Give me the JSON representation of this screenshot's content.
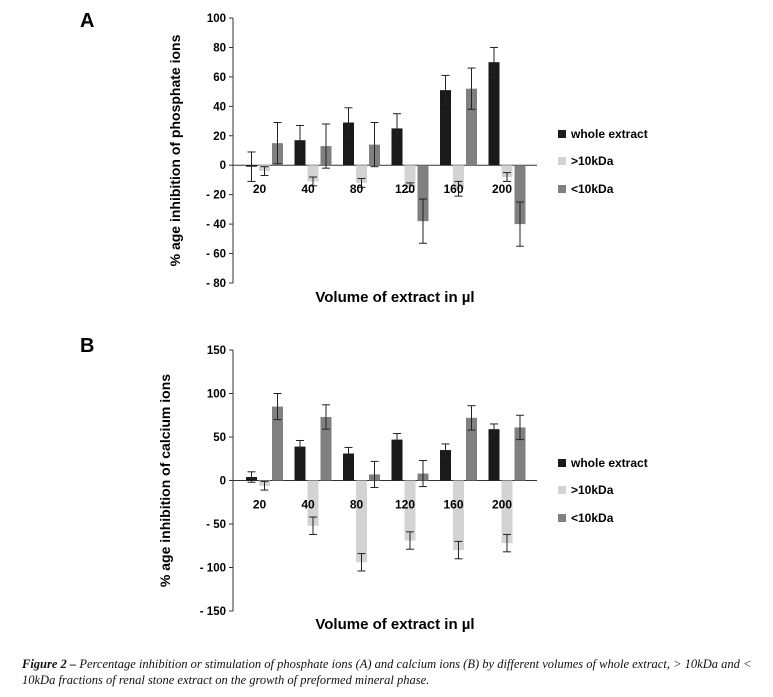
{
  "chart_data": [
    {
      "type": "bar",
      "panel_label": "A",
      "categories": [
        "20",
        "40",
        "80",
        "120",
        "160",
        "200"
      ],
      "xlabel": "Volume of extract in µl",
      "ylabel": "% age inhibition of phosphate ions",
      "ylim": [
        -80,
        100
      ],
      "yticks": [
        "100",
        "80",
        "60",
        "40",
        "20",
        "0",
        "- 20",
        "- 40",
        "- 60",
        "- 80"
      ],
      "legend_position": "right",
      "series": [
        {
          "name": "whole extract",
          "color": "#1a1a1a",
          "values": [
            -1,
            17,
            29,
            25,
            51,
            70
          ],
          "errors": [
            10,
            10,
            10,
            10,
            10,
            10
          ]
        },
        {
          "name": ">10kDa",
          "color": "#d3d3d3",
          "values": [
            -4,
            -11,
            -12,
            -15,
            -16,
            -8
          ],
          "errors": [
            3,
            3,
            3,
            3,
            5,
            3
          ]
        },
        {
          "name": "<10kDa",
          "color": "#808080",
          "values": [
            15,
            13,
            14,
            -38,
            52,
            -40
          ],
          "errors": [
            14,
            15,
            15,
            15,
            14,
            15
          ]
        }
      ]
    },
    {
      "type": "bar",
      "panel_label": "B",
      "categories": [
        "20",
        "40",
        "80",
        "120",
        "160",
        "200"
      ],
      "xlabel": "Volume of extract in µl",
      "ylabel": "% age inhibition of calcium ions",
      "ylim": [
        -150,
        150
      ],
      "yticks": [
        "150",
        "100",
        "50",
        "0",
        "- 50",
        "- 100",
        "- 150"
      ],
      "legend_position": "right",
      "series": [
        {
          "name": "whole extract",
          "color": "#1a1a1a",
          "values": [
            4,
            39,
            31,
            47,
            35,
            59
          ],
          "errors": [
            6,
            7,
            7,
            7,
            7,
            6
          ]
        },
        {
          "name": ">10kDa",
          "color": "#d3d3d3",
          "values": [
            -6,
            -52,
            -94,
            -69,
            -80,
            -72
          ],
          "errors": [
            5,
            10,
            10,
            10,
            10,
            10
          ]
        },
        {
          "name": "<10kDa",
          "color": "#808080",
          "values": [
            85,
            73,
            7,
            8,
            72,
            61
          ],
          "errors": [
            15,
            14,
            15,
            15,
            14,
            14
          ]
        }
      ]
    }
  ],
  "caption": {
    "lead": "Figure 2 –",
    "text": " Percentage inhibition or stimulation of phosphate ions (A) and calcium ions (B) by different volumes of whole extract, > 10kDa and < 10kDa fractions of renal stone extract on the growth of preformed mineral phase."
  }
}
